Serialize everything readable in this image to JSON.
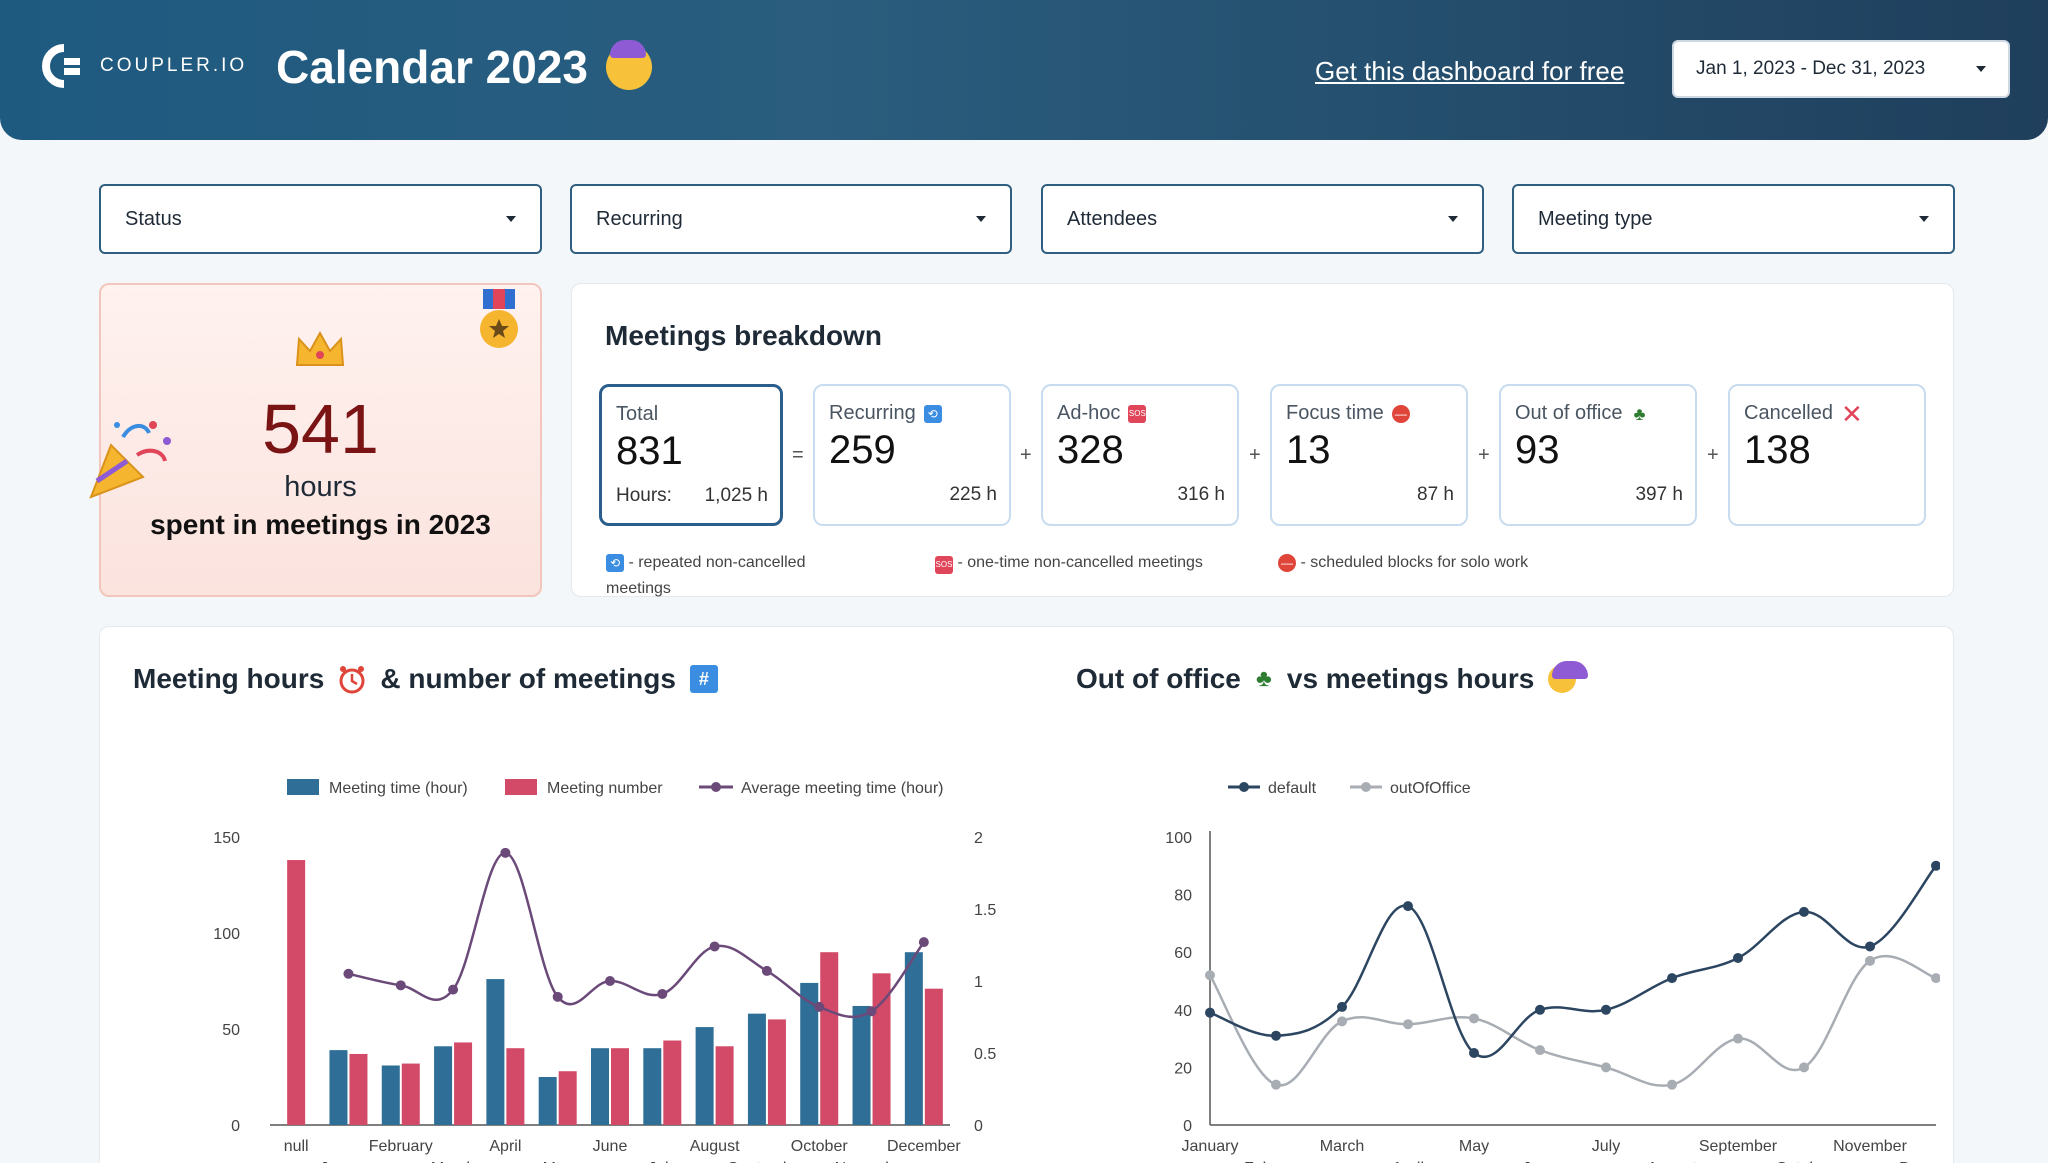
{
  "header": {
    "logo_text": "COUPLER.IO",
    "title": "Calendar 2023",
    "cta": "Get this dashboard for free",
    "date_range": "Jan 1, 2023 - Dec 31, 2023"
  },
  "filters": [
    "Status",
    "Recurring",
    "Attendees",
    "Meeting type"
  ],
  "hero": {
    "value": "541",
    "unit": "hours",
    "caption": "spent in meetings in 2023"
  },
  "breakdown": {
    "title": "Meetings breakdown",
    "total": {
      "label": "Total",
      "value": "831",
      "hours_label": "Hours:",
      "hours": "1,025 h"
    },
    "kpis": [
      {
        "label": "Recurring",
        "value": "259",
        "hours": "225 h",
        "icon": "recurring-icon"
      },
      {
        "label": "Ad-hoc",
        "value": "328",
        "hours": "316 h",
        "icon": "sos-icon"
      },
      {
        "label": "Focus time",
        "value": "13",
        "hours": "87 h",
        "icon": "no-entry-icon"
      },
      {
        "label": "Out of office",
        "value": "93",
        "hours": "397 h",
        "icon": "palm-icon"
      },
      {
        "label": "Cancelled",
        "value": "138",
        "hours": "",
        "icon": "cross-icon"
      }
    ],
    "ops": [
      "=",
      "+",
      "+",
      "+",
      "+"
    ],
    "notes": [
      {
        "icon": "recurring-icon",
        "text1": "- repeated non-cancelled",
        "text2": "meetings"
      },
      {
        "icon": "sos-icon",
        "text1": "- one-time non-cancelled meetings",
        "text2": ""
      },
      {
        "icon": "no-entry-icon",
        "text1": "- scheduled blocks for solo work",
        "text2": ""
      }
    ]
  },
  "chart1_title": {
    "part1": "Meeting hours",
    "part2": "& number of meetings"
  },
  "chart2_title": {
    "part1": "Out of office",
    "part2": "vs  meetings hours"
  },
  "colors": {
    "bar_time": "#2f6f97",
    "bar_number": "#d24a67",
    "avg_line": "#6b4a7a",
    "default_line": "#2c4560",
    "ooo_line": "#a8adb4"
  },
  "chart_data": [
    {
      "type": "bar",
      "title": "Meeting hours & number of meetings",
      "categories": [
        "null",
        "January",
        "February",
        "March",
        "April",
        "May",
        "June",
        "July",
        "August",
        "September",
        "October",
        "November",
        "December"
      ],
      "series": [
        {
          "name": "Meeting time (hour)",
          "axis": "left",
          "values": [
            null,
            39,
            31,
            41,
            76,
            25,
            40,
            40,
            51,
            58,
            74,
            62,
            90
          ]
        },
        {
          "name": "Meeting number",
          "axis": "left",
          "values": [
            138,
            37,
            32,
            43,
            40,
            28,
            40,
            44,
            41,
            55,
            90,
            79,
            71
          ]
        },
        {
          "name": "Average meeting time (hour)",
          "axis": "right",
          "type": "line",
          "values": [
            null,
            1.05,
            0.97,
            0.94,
            1.89,
            0.89,
            1.0,
            0.91,
            1.24,
            1.07,
            0.82,
            0.79,
            1.27
          ]
        }
      ],
      "ylim_left": [
        0,
        150
      ],
      "yticks_left": [
        0,
        50,
        100,
        150
      ],
      "ylim_right": [
        0,
        2
      ],
      "yticks_right": [
        0,
        0.5,
        1,
        1.5,
        2
      ]
    },
    {
      "type": "line",
      "title": "Out of office vs meetings hours",
      "categories": [
        "January",
        "February",
        "March",
        "April",
        "May",
        "June",
        "July",
        "August",
        "September",
        "October",
        "November",
        "December"
      ],
      "series": [
        {
          "name": "default",
          "values": [
            39,
            31,
            41,
            76,
            25,
            40,
            40,
            51,
            58,
            74,
            62,
            90
          ]
        },
        {
          "name": "outOfOffice",
          "values": [
            52,
            14,
            36,
            35,
            37,
            26,
            20,
            14,
            30,
            20,
            57,
            51
          ]
        }
      ],
      "ylim": [
        0,
        100
      ],
      "yticks": [
        0,
        20,
        40,
        60,
        80,
        100
      ]
    }
  ]
}
